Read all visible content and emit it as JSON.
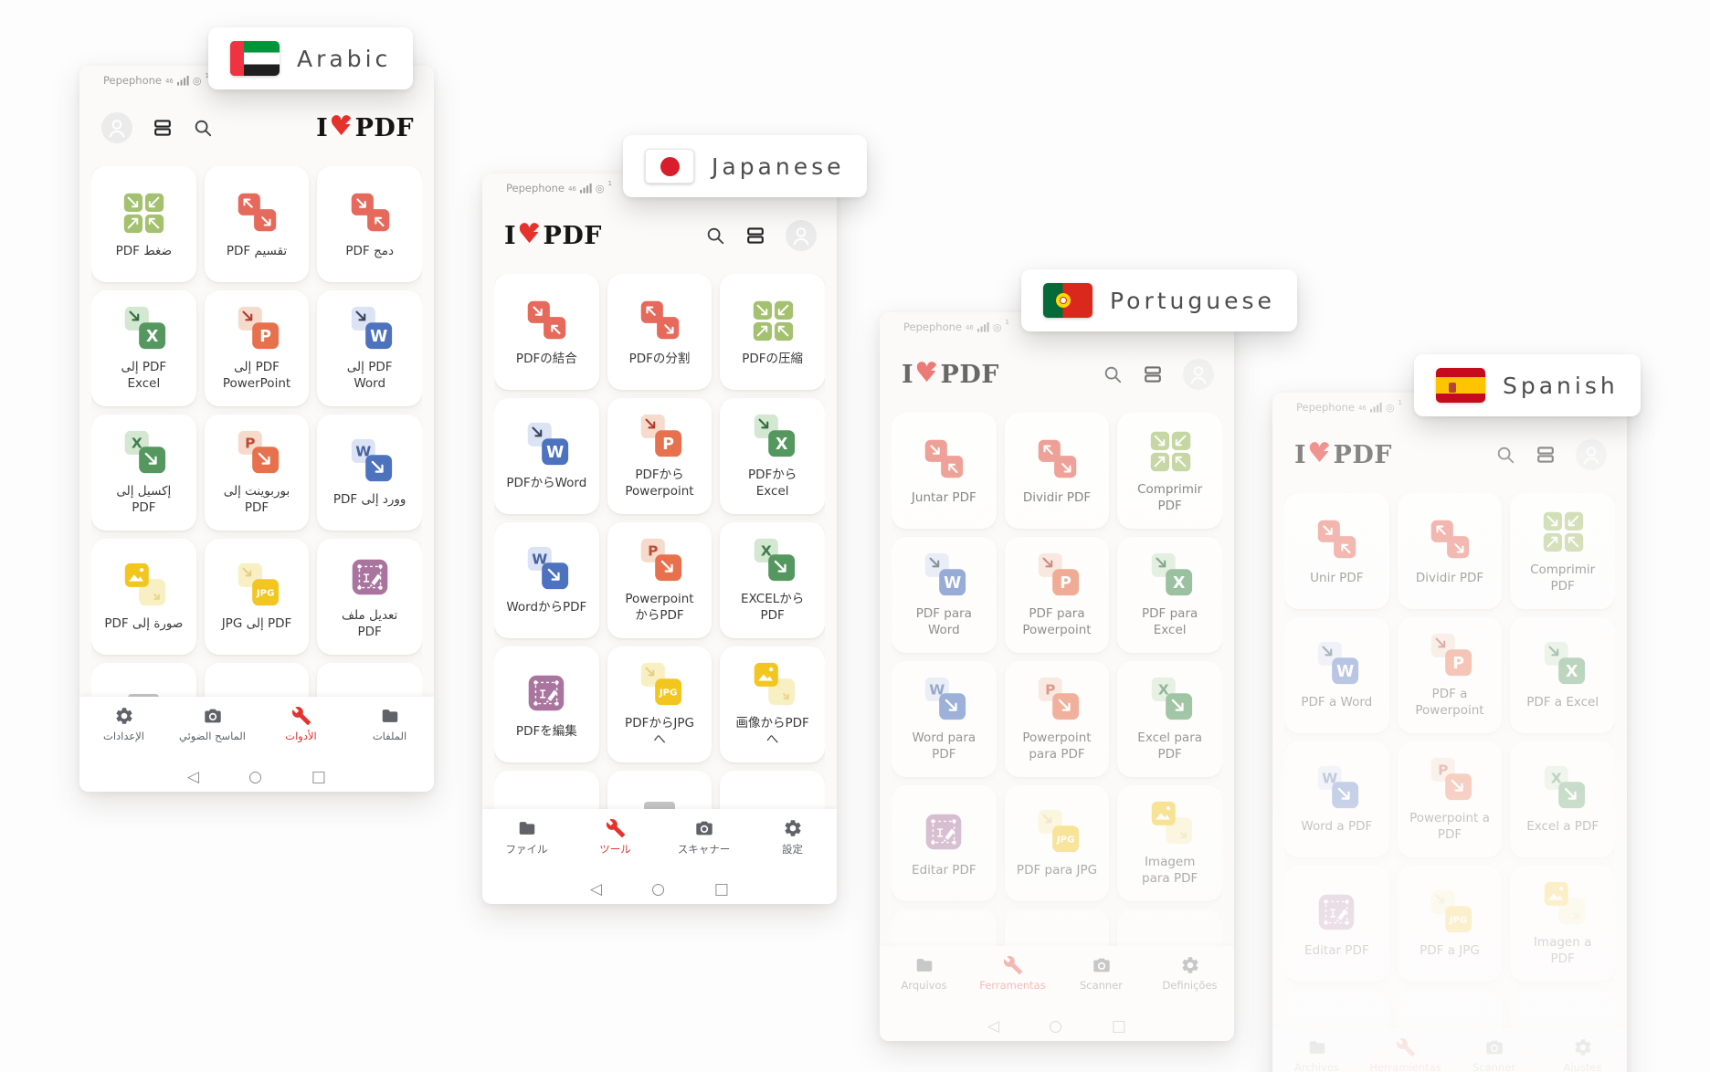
{
  "colors": {
    "accent": "#E5322D",
    "tool_red": "#E6695B",
    "tool_green": "#A4C170",
    "word_blue": "#4D72BE",
    "ppt_orange": "#E8714D",
    "excel_green": "#54985F",
    "edit_purple": "#A9759F",
    "jpg_yellow": "#F3C51F"
  },
  "shared": {
    "status": {
      "carrier": "Pepephone",
      "network_badge": "46",
      "hotspot_glyph": "◎",
      "hotspot_count": "1"
    },
    "logo": {
      "left": "I",
      "heart": "♥",
      "right": "PDF"
    },
    "android_nav": {
      "back": "◁",
      "home": "○",
      "recents": "□"
    }
  },
  "language_cards": [
    {
      "id": "arabic",
      "label": "Arabic",
      "flag": "uae-flag-icon"
    },
    {
      "id": "japanese",
      "label": "Japanese",
      "flag": "japan-flag-icon"
    },
    {
      "id": "portuguese",
      "label": "Portuguese",
      "flag": "portugal-flag-icon"
    },
    {
      "id": "spanish",
      "label": "Spanish",
      "flag": "spain-flag-icon"
    }
  ],
  "phones": [
    {
      "id": "arabic",
      "dir": "rtl",
      "tools": [
        {
          "icon": "merge-icon",
          "label": "دمج PDF"
        },
        {
          "icon": "split-icon",
          "label": "تقسيم PDF"
        },
        {
          "icon": "compress-icon",
          "label": "ضغط PDF"
        },
        {
          "icon": "pdf-to-word-icon",
          "label": "PDF إلى Word"
        },
        {
          "icon": "pdf-to-powerpoint-icon",
          "label": "PDF إلى PowerPoint"
        },
        {
          "icon": "pdf-to-excel-icon",
          "label": "PDF إلى Excel"
        },
        {
          "icon": "word-to-pdf-icon",
          "label": "وورد إلى PDF"
        },
        {
          "icon": "powerpoint-to-pdf-icon",
          "label": "بوربوينت إلى PDF"
        },
        {
          "icon": "excel-to-pdf-icon",
          "label": "إكسيل إلى PDF"
        },
        {
          "icon": "edit-pdf-icon",
          "label": "تعديل ملف PDF"
        },
        {
          "icon": "pdf-to-jpg-icon",
          "label": "PDF إلى JPG"
        },
        {
          "icon": "image-to-pdf-icon",
          "label": "صورة إلى PDF"
        }
      ],
      "nav": [
        {
          "icon": "folder-icon",
          "label": "الملفات",
          "active": false
        },
        {
          "icon": "wrench-icon",
          "label": "الأدوات",
          "active": true
        },
        {
          "icon": "camera-icon",
          "label": "الماسح الضوئي",
          "active": false
        },
        {
          "icon": "gear-icon",
          "label": "الإعدادات",
          "active": false
        }
      ]
    },
    {
      "id": "japanese",
      "dir": "ltr",
      "tools": [
        {
          "icon": "merge-icon",
          "label": "PDFの結合"
        },
        {
          "icon": "split-icon",
          "label": "PDFの分割"
        },
        {
          "icon": "compress-icon",
          "label": "PDFの圧縮"
        },
        {
          "icon": "pdf-to-word-icon",
          "label": "PDFからWord"
        },
        {
          "icon": "pdf-to-powerpoint-icon",
          "label": "PDFからPowerpoint"
        },
        {
          "icon": "pdf-to-excel-icon",
          "label": "PDFからExcel"
        },
        {
          "icon": "word-to-pdf-icon",
          "label": "WordからPDF"
        },
        {
          "icon": "powerpoint-to-pdf-icon",
          "label": "PowerpointからPDF"
        },
        {
          "icon": "excel-to-pdf-icon",
          "label": "EXCELからPDF"
        },
        {
          "icon": "edit-pdf-icon",
          "label": "PDFを編集"
        },
        {
          "icon": "pdf-to-jpg-icon",
          "label": "PDFからJPGへ"
        },
        {
          "icon": "image-to-pdf-icon",
          "label": "画像からPDFへ"
        }
      ],
      "nav": [
        {
          "icon": "folder-icon",
          "label": "ファイル",
          "active": false
        },
        {
          "icon": "wrench-icon",
          "label": "ツール",
          "active": true
        },
        {
          "icon": "camera-icon",
          "label": "スキャナー",
          "active": false
        },
        {
          "icon": "gear-icon",
          "label": "設定",
          "active": false
        }
      ]
    },
    {
      "id": "portuguese",
      "dir": "ltr",
      "tools": [
        {
          "icon": "merge-icon",
          "label": "Juntar PDF"
        },
        {
          "icon": "split-icon",
          "label": "Dividir PDF"
        },
        {
          "icon": "compress-icon",
          "label": "Comprimir PDF"
        },
        {
          "icon": "pdf-to-word-icon",
          "label": "PDF para Word"
        },
        {
          "icon": "pdf-to-powerpoint-icon",
          "label": "PDF para Powerpoint"
        },
        {
          "icon": "pdf-to-excel-icon",
          "label": "PDF para Excel"
        },
        {
          "icon": "word-to-pdf-icon",
          "label": "Word para PDF"
        },
        {
          "icon": "powerpoint-to-pdf-icon",
          "label": "Powerpoint para PDF"
        },
        {
          "icon": "excel-to-pdf-icon",
          "label": "Excel para PDF"
        },
        {
          "icon": "edit-pdf-icon",
          "label": "Editar PDF"
        },
        {
          "icon": "pdf-to-jpg-icon",
          "label": "PDF para JPG"
        },
        {
          "icon": "image-to-pdf-icon",
          "label": "Imagem para PDF"
        }
      ],
      "nav": [
        {
          "icon": "folder-icon",
          "label": "Arquivos",
          "active": false
        },
        {
          "icon": "wrench-icon",
          "label": "Ferramentas",
          "active": true
        },
        {
          "icon": "camera-icon",
          "label": "Scanner",
          "active": false
        },
        {
          "icon": "gear-icon",
          "label": "Definições",
          "active": false
        }
      ]
    },
    {
      "id": "spanish",
      "dir": "ltr",
      "tools": [
        {
          "icon": "merge-icon",
          "label": "Unir PDF"
        },
        {
          "icon": "split-icon",
          "label": "Dividir PDF"
        },
        {
          "icon": "compress-icon",
          "label": "Comprimir PDF"
        },
        {
          "icon": "pdf-to-word-icon",
          "label": "PDF a Word"
        },
        {
          "icon": "pdf-to-powerpoint-icon",
          "label": "PDF a Powerpoint"
        },
        {
          "icon": "pdf-to-excel-icon",
          "label": "PDF a Excel"
        },
        {
          "icon": "word-to-pdf-icon",
          "label": "Word a PDF"
        },
        {
          "icon": "powerpoint-to-pdf-icon",
          "label": "Powerpoint a PDF"
        },
        {
          "icon": "excel-to-pdf-icon",
          "label": "Excel a PDF"
        },
        {
          "icon": "edit-pdf-icon",
          "label": "Editar PDF"
        },
        {
          "icon": "pdf-to-jpg-icon",
          "label": "PDF a JPG"
        },
        {
          "icon": "image-to-pdf-icon",
          "label": "Imagen a PDF"
        }
      ],
      "nav": [
        {
          "icon": "folder-icon",
          "label": "Archivos",
          "active": false
        },
        {
          "icon": "wrench-icon",
          "label": "Herramientas",
          "active": true
        },
        {
          "icon": "camera-icon",
          "label": "Scanner",
          "active": false
        },
        {
          "icon": "gear-icon",
          "label": "Ajustes",
          "active": false
        }
      ]
    }
  ]
}
